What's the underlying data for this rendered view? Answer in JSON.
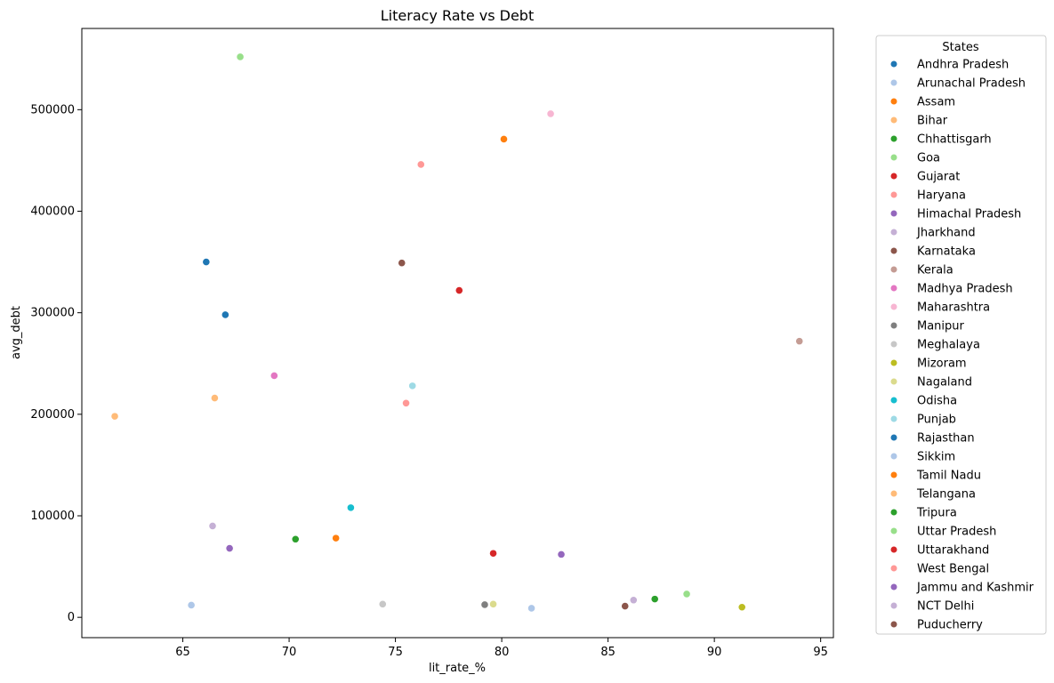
{
  "chart_data": {
    "type": "scatter",
    "title": "Literacy Rate vs Debt",
    "xlabel": "lit_rate_%",
    "ylabel": "avg_debt",
    "xlim": [
      60.25,
      95.6
    ],
    "ylim": [
      -20000,
      580000
    ],
    "xticks": [
      65,
      70,
      75,
      80,
      85,
      90,
      95
    ],
    "yticks": [
      0,
      100000,
      200000,
      300000,
      400000,
      500000
    ],
    "legend": {
      "title": "States",
      "placement": "outside-right"
    },
    "grid": false,
    "series": [
      {
        "name": "Andhra Pradesh",
        "color": "#1f77b4",
        "points": [
          [
            66.1,
            350000
          ]
        ]
      },
      {
        "name": "Arunachal Pradesh",
        "color": "#aec7e8",
        "points": [
          [
            65.4,
            12000
          ]
        ]
      },
      {
        "name": "Assam",
        "color": "#ff7f0e",
        "points": [
          [
            72.2,
            78000
          ]
        ]
      },
      {
        "name": "Bihar",
        "color": "#ffbb78",
        "points": [
          [
            61.8,
            198000
          ]
        ]
      },
      {
        "name": "Chhattisgarh",
        "color": "#2ca02c",
        "points": [
          [
            70.3,
            77000
          ]
        ]
      },
      {
        "name": "Goa",
        "color": "#98df8a",
        "points": [
          [
            88.7,
            23000
          ]
        ]
      },
      {
        "name": "Gujarat",
        "color": "#d62728",
        "points": [
          [
            78.0,
            322000
          ]
        ]
      },
      {
        "name": "Haryana",
        "color": "#ff9896",
        "points": [
          [
            76.2,
            446000
          ]
        ]
      },
      {
        "name": "Himachal Pradesh",
        "color": "#9467bd",
        "points": [
          [
            82.8,
            62000
          ]
        ]
      },
      {
        "name": "Jharkhand",
        "color": "#c5b0d5",
        "points": [
          [
            66.4,
            90000
          ]
        ]
      },
      {
        "name": "Karnataka",
        "color": "#8c564b",
        "points": [
          [
            75.3,
            349000
          ]
        ]
      },
      {
        "name": "Kerala",
        "color": "#c49c94",
        "points": [
          [
            94.0,
            272000
          ]
        ]
      },
      {
        "name": "Madhya Pradesh",
        "color": "#e377c2",
        "points": [
          [
            69.3,
            238000
          ]
        ]
      },
      {
        "name": "Maharashtra",
        "color": "#f7b6d2",
        "points": [
          [
            82.3,
            496000
          ]
        ]
      },
      {
        "name": "Manipur",
        "color": "#7f7f7f",
        "points": [
          [
            79.2,
            12500
          ]
        ]
      },
      {
        "name": "Meghalaya",
        "color": "#c7c7c7",
        "points": [
          [
            74.4,
            13000
          ]
        ]
      },
      {
        "name": "Mizoram",
        "color": "#bcbd22",
        "points": [
          [
            91.3,
            10000
          ]
        ]
      },
      {
        "name": "Nagaland",
        "color": "#dbdb8d",
        "points": [
          [
            79.6,
            13000
          ]
        ]
      },
      {
        "name": "Odisha",
        "color": "#17becf",
        "points": [
          [
            72.9,
            108000
          ]
        ]
      },
      {
        "name": "Punjab",
        "color": "#9edae5",
        "points": [
          [
            75.8,
            228000
          ]
        ]
      },
      {
        "name": "Rajasthan",
        "color": "#1f77b4",
        "points": [
          [
            67.0,
            298000
          ]
        ]
      },
      {
        "name": "Sikkim",
        "color": "#aec7e8",
        "points": [
          [
            81.4,
            9000
          ]
        ]
      },
      {
        "name": "Tamil Nadu",
        "color": "#ff7f0e",
        "points": [
          [
            80.1,
            471000
          ]
        ]
      },
      {
        "name": "Telangana",
        "color": "#ffbb78",
        "points": [
          [
            66.5,
            216000
          ]
        ]
      },
      {
        "name": "Tripura",
        "color": "#2ca02c",
        "points": [
          [
            87.2,
            18000
          ]
        ]
      },
      {
        "name": "Uttar Pradesh",
        "color": "#98df8a",
        "points": [
          [
            67.7,
            552000
          ]
        ]
      },
      {
        "name": "Uttarakhand",
        "color": "#d62728",
        "points": [
          [
            79.6,
            63000
          ]
        ]
      },
      {
        "name": "West Bengal",
        "color": "#ff9896",
        "points": [
          [
            75.5,
            211000
          ]
        ]
      },
      {
        "name": "Jammu and Kashmir",
        "color": "#9467bd",
        "points": [
          [
            67.2,
            68000
          ]
        ]
      },
      {
        "name": "NCT Delhi",
        "color": "#c5b0d5",
        "points": [
          [
            86.2,
            17000
          ]
        ]
      },
      {
        "name": "Puducherry",
        "color": "#8c564b",
        "points": [
          [
            85.8,
            11000
          ]
        ]
      }
    ]
  }
}
